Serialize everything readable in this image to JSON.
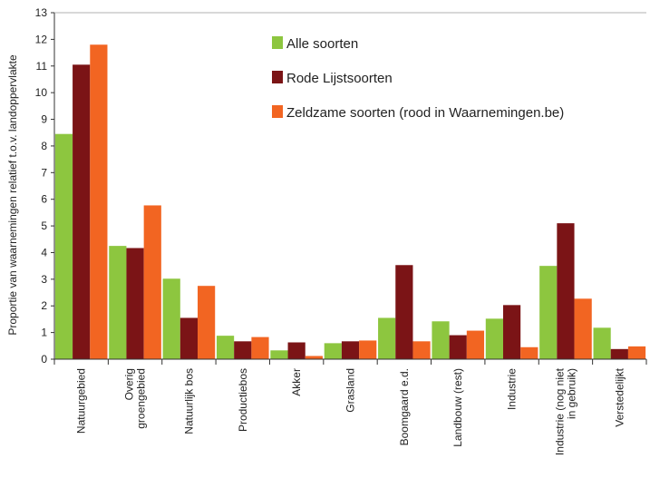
{
  "chart_data": {
    "type": "bar",
    "ylabel": "Proportie van waarnemingen relatief t.o.v. landoppervlakte",
    "ylim": [
      0,
      13
    ],
    "yticks": [
      0,
      1,
      2,
      3,
      4,
      5,
      6,
      7,
      8,
      9,
      10,
      11,
      12,
      13
    ],
    "grid": false,
    "legend": "top-right",
    "categories": [
      [
        "Natuurgebied"
      ],
      [
        "Overig",
        "groengebied"
      ],
      [
        "Natuurlijk bos"
      ],
      [
        "Productiebos"
      ],
      [
        "Akker"
      ],
      [
        "Grasland"
      ],
      [
        "Boomgaard e.d."
      ],
      [
        "Landbouw (rest)"
      ],
      [
        "Industrie"
      ],
      [
        "Industrie (nog niet",
        "in gebruik)"
      ],
      [
        "Verstedelijkt"
      ]
    ],
    "series": [
      {
        "name": "Alle soorten",
        "color": "#8dc63f",
        "values": [
          8.45,
          4.25,
          3.02,
          0.88,
          0.33,
          0.6,
          1.55,
          1.42,
          1.52,
          3.5,
          1.18
        ]
      },
      {
        "name": "Rode Lijstsoorten",
        "color": "#7b1416",
        "values": [
          11.05,
          4.17,
          1.55,
          0.67,
          0.63,
          0.67,
          3.53,
          0.9,
          2.03,
          5.1,
          0.38
        ]
      },
      {
        "name": "Zeldzame soorten (rood in Waarnemingen.be)",
        "color": "#f26522",
        "values": [
          11.8,
          5.77,
          2.75,
          0.83,
          0.12,
          0.7,
          0.67,
          1.07,
          0.45,
          2.27,
          0.48
        ]
      }
    ]
  }
}
